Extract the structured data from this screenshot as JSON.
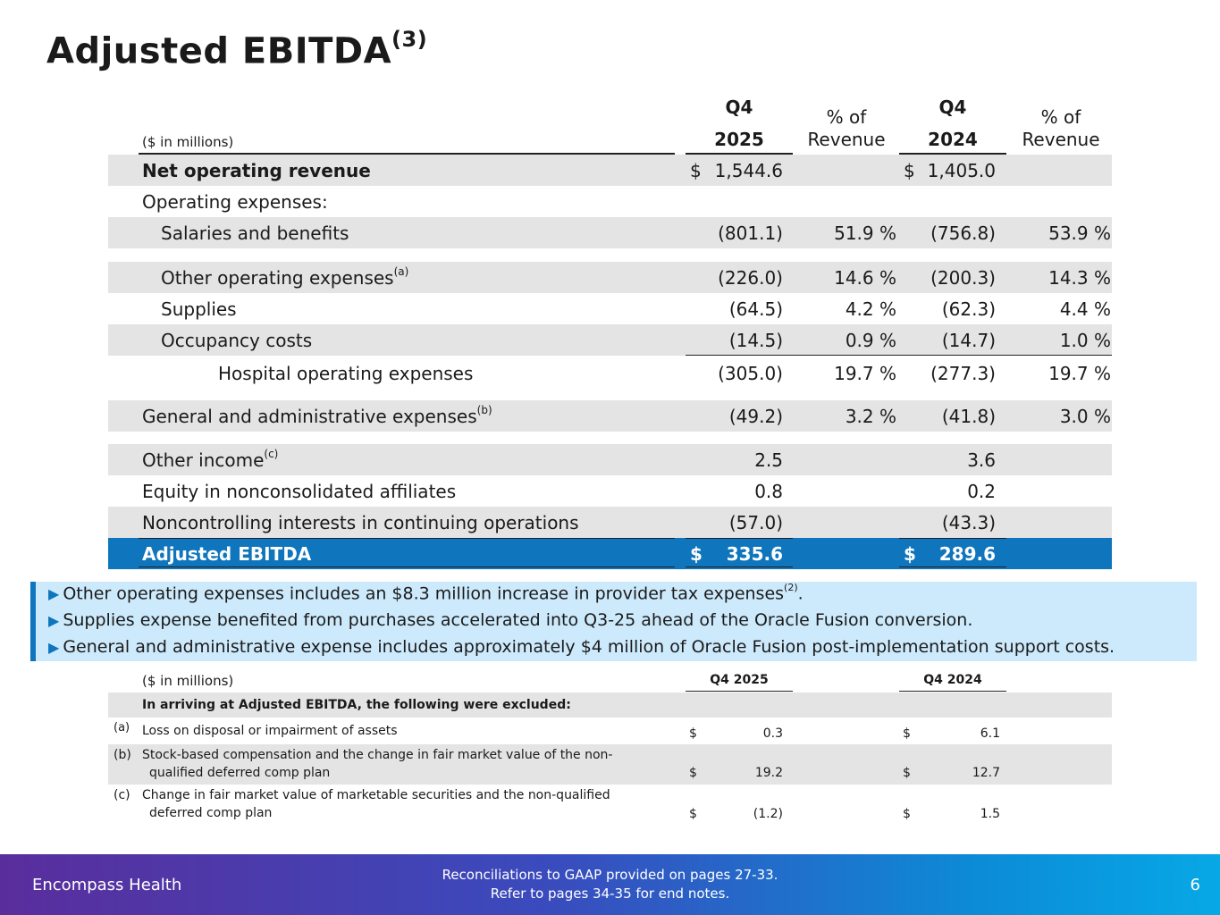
{
  "title": "Adjusted EBITDA",
  "title_note": "(3)",
  "table": {
    "units": "($ in millions)",
    "col_q_2025_top": "Q4",
    "col_q_2025_bottom": "2025",
    "col_pct_1_top": "% of",
    "col_pct_1_bottom": "Revenue",
    "col_q_2024_top": "Q4",
    "col_q_2024_bottom": "2024",
    "col_pct_2_top": "% of",
    "col_pct_2_bottom": "Revenue",
    "rows": [
      {
        "label": "Net operating revenue",
        "dollar1": "$",
        "v1": "1,544.6",
        "p1": "",
        "dollar2": "$",
        "v2": "1,405.0",
        "p2": ""
      },
      {
        "label": "Operating expenses:",
        "v1": "",
        "p1": "",
        "v2": "",
        "p2": ""
      },
      {
        "label": "Salaries and benefits",
        "v1": "(801.1)",
        "p1": "51.9 %",
        "v2": "(756.8)",
        "p2": "53.9 %"
      },
      {
        "label": "Other operating expenses",
        "note": "(a)",
        "v1": "(226.0)",
        "p1": "14.6 %",
        "v2": "(200.3)",
        "p2": "14.3 %"
      },
      {
        "label": "Supplies",
        "v1": "(64.5)",
        "p1": "4.2 %",
        "v2": "(62.3)",
        "p2": "4.4 %"
      },
      {
        "label": "Occupancy costs",
        "v1": "(14.5)",
        "p1": "0.9 %",
        "v2": "(14.7)",
        "p2": "1.0 %"
      },
      {
        "label": "Hospital operating expenses",
        "v1": "(305.0)",
        "p1": "19.7 %",
        "v2": "(277.3)",
        "p2": "19.7 %"
      },
      {
        "label": "General and administrative expenses",
        "note": "(b)",
        "v1": "(49.2)",
        "p1": "3.2 %",
        "v2": "(41.8)",
        "p2": "3.0 %"
      },
      {
        "label": "Other income",
        "note": "(c)",
        "v1": "2.5",
        "p1": "",
        "v2": "3.6",
        "p2": ""
      },
      {
        "label": "Equity in nonconsolidated affiliates",
        "v1": "0.8",
        "p1": "",
        "v2": "0.2",
        "p2": ""
      },
      {
        "label": "Noncontrolling interests in continuing operations",
        "v1": "(57.0)",
        "p1": "",
        "v2": "(43.3)",
        "p2": ""
      },
      {
        "label": "Adjusted EBITDA",
        "dollar1": "$",
        "v1": "335.6",
        "p1": "",
        "dollar2": "$",
        "v2": "289.6",
        "p2": ""
      }
    ]
  },
  "callout": {
    "bullet_1": "Other operating expenses includes an $8.3 million increase in provider tax expenses",
    "bullet_1_note": "(2)",
    "bullet_1_end": ".",
    "bullet_2": "Supplies expense benefited from purchases accelerated into Q3-25 ahead of the Oracle Fusion conversion.",
    "bullet_3": "General and administrative expense includes approximately $4 million of Oracle Fusion post-implementation support costs."
  },
  "exclusions": {
    "units": "($ in millions)",
    "col_1": "Q4 2025",
    "col_2": "Q4 2024",
    "heading": "In arriving at Adjusted EBITDA, the following were excluded:",
    "items": [
      {
        "key": "(a)",
        "line1": "Loss on disposal or impairment of assets",
        "line2": "",
        "dollar1": "$",
        "v1": "0.3",
        "dollar2": "$",
        "v2": "6.1"
      },
      {
        "key": "(b)",
        "line1": "Stock-based compensation and the change in fair market value of the non-",
        "line2": "qualified deferred comp plan",
        "dollar1": "$",
        "v1": "19.2",
        "dollar2": "$",
        "v2": "12.7"
      },
      {
        "key": "(c)",
        "line1": "Change in fair market value of marketable securities and the non-qualified",
        "line2": "deferred comp plan",
        "dollar1": "$",
        "v1": "(1.2)",
        "dollar2": "$",
        "v2": "1.5"
      }
    ]
  },
  "footer": {
    "brand": "Encompass Health",
    "note_1": "Reconciliations to GAAP provided on pages 27-33.",
    "note_2": "Refer to pages 34-35 for end notes.",
    "page": "6"
  },
  "colors": {
    "accent_blue": "#0f75bc",
    "callout_bg": "#cdeafc",
    "row_shade": "#e4e4e4"
  }
}
